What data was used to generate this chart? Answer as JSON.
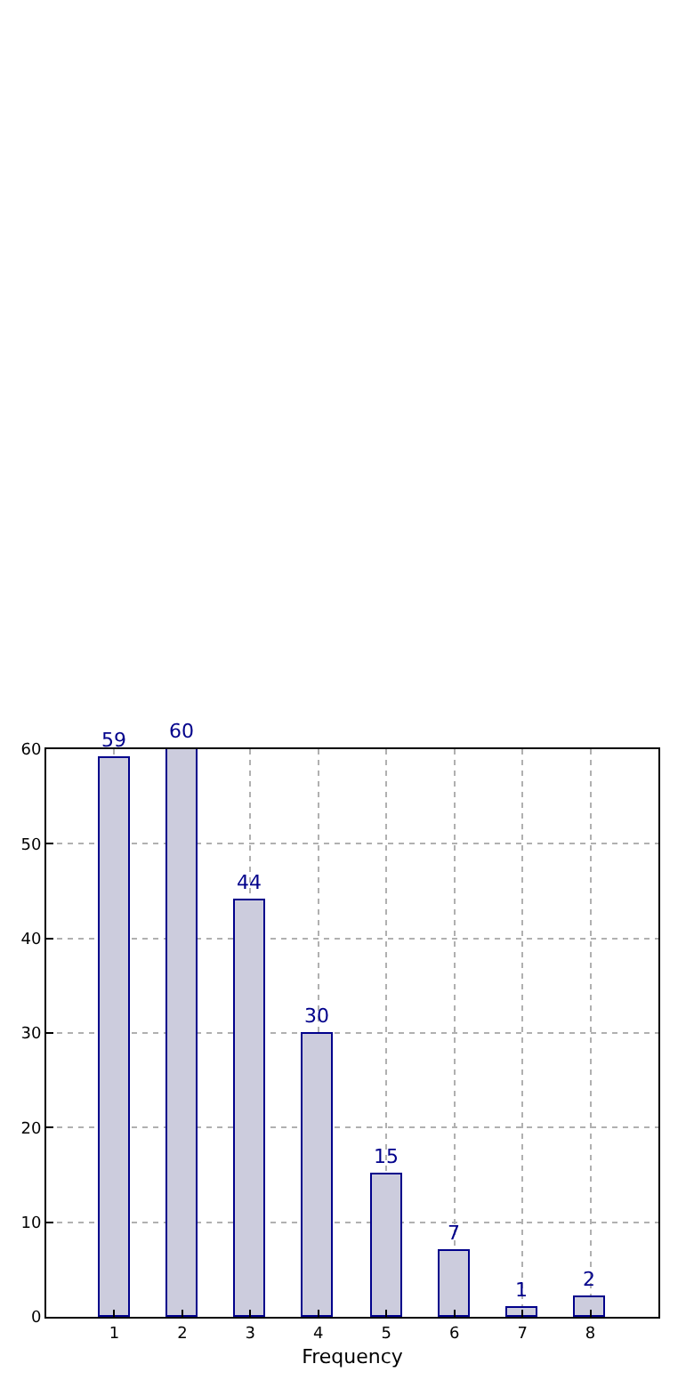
{
  "chart_data": {
    "type": "bar",
    "xlabel": "Frequency",
    "x": [
      1,
      2,
      3,
      4,
      5,
      6,
      7,
      8
    ],
    "values": [
      59,
      60,
      44,
      30,
      15,
      7,
      1,
      2
    ],
    "color": "#ccccdd",
    "xlim": [
      0,
      9
    ],
    "xticks": [
      1,
      2,
      3,
      4,
      5,
      6,
      7,
      8
    ],
    "ylim": [
      0,
      60
    ],
    "yticks": [
      0,
      10,
      20,
      30,
      40,
      50,
      60
    ],
    "grid": true,
    "data_labels": true
  }
}
